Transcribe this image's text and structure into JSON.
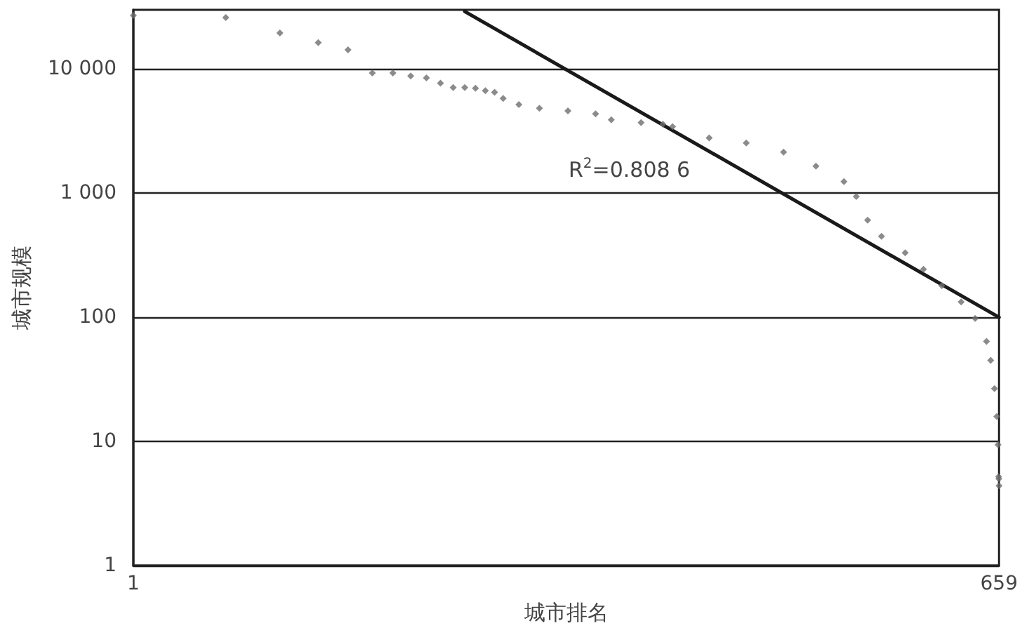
{
  "chart_data": {
    "type": "scatter",
    "xlabel": "城市排名",
    "ylabel": "城市规模",
    "log": "xy",
    "xlim": [
      1,
      659
    ],
    "xticks": [
      1,
      659
    ],
    "ylim": [
      1,
      30000
    ],
    "yticks": [
      1,
      10,
      100,
      {
        "value": 1000,
        "label": "1 000"
      },
      {
        "value": 10000,
        "label": "10 000"
      }
    ],
    "grid": "y",
    "marker": "diamond",
    "annotations": [
      "R$^{2}$=0.808 6"
    ],
    "series": [
      {
        "type": "scatter",
        "color": "#6e6e6e",
        "x": [
          1,
          2,
          3,
          4,
          5,
          6,
          7,
          8,
          9,
          10,
          11,
          12,
          13,
          14,
          15,
          16,
          18,
          21,
          26,
          32,
          36,
          45,
          53,
          57,
          75,
          99,
          131,
          167,
          206,
          226,
          246,
          273,
          326,
          374,
          429,
          496,
          551,
          600,
          619,
          637,
          648,
          654,
          657,
          658,
          659
        ],
        "values": [
          27000,
          26000,
          19500,
          16300,
          14300,
          9300,
          9300,
          8800,
          8500,
          7700,
          7100,
          7100,
          7000,
          6700,
          6500,
          5800,
          5180,
          4830,
          4600,
          4350,
          3900,
          3700,
          3600,
          3440,
          2790,
          2540,
          2140,
          1650,
          1240,
          940,
          607,
          449,
          331,
          244,
          180,
          133,
          98,
          64,
          45,
          26.7,
          15.9,
          9.4,
          5.2,
          5,
          4.4
        ]
      },
      {
        "type": "line",
        "color": "#1a1a1a",
        "line_style": "solid",
        "marker": "none",
        "x": [
          12,
          659
        ],
        "values": [
          29100,
          100
        ]
      }
    ]
  }
}
